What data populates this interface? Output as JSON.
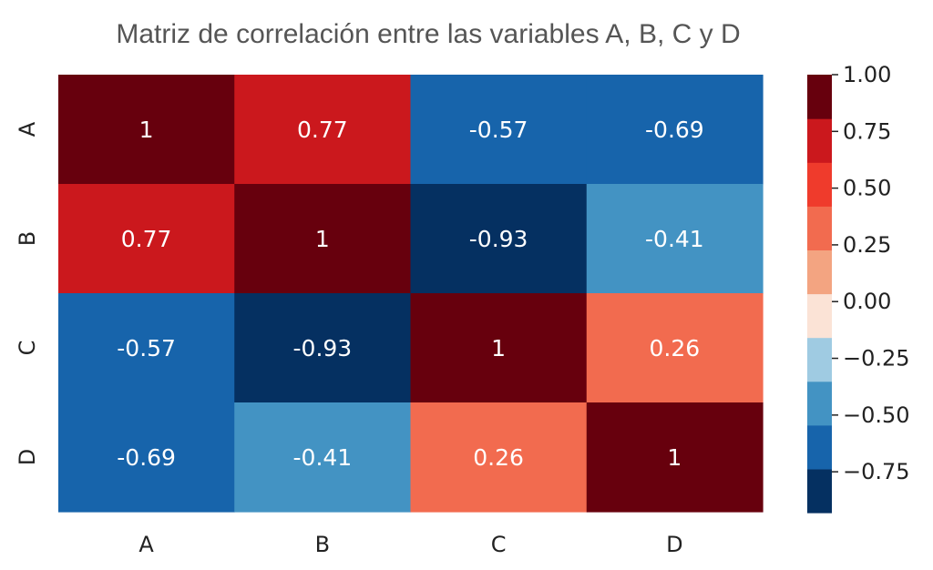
{
  "chart_data": {
    "type": "heatmap",
    "title": "Matriz de correlación entre las variables A, B, C y D",
    "x_categories": [
      "A",
      "B",
      "C",
      "D"
    ],
    "y_categories": [
      "A",
      "B",
      "C",
      "D"
    ],
    "values": [
      [
        1,
        0.77,
        -0.57,
        -0.69
      ],
      [
        0.77,
        1,
        -0.93,
        -0.41
      ],
      [
        -0.57,
        -0.93,
        1,
        0.26
      ],
      [
        -0.69,
        -0.41,
        0.26,
        1
      ]
    ],
    "cell_labels": [
      [
        "1",
        "0.77",
        "-0.57",
        "-0.69"
      ],
      [
        "0.77",
        "1",
        "-0.93",
        "-0.41"
      ],
      [
        "-0.57",
        "-0.93",
        "1",
        "0.26"
      ],
      [
        "-0.69",
        "-0.41",
        "0.26",
        "1"
      ]
    ],
    "colormap": "RdBu_r (10 discrete levels)",
    "colorbar": {
      "range": [
        -0.93,
        1.0
      ],
      "ticks": [
        1.0,
        0.75,
        0.5,
        0.25,
        0.0,
        -0.25,
        -0.5,
        -0.75
      ],
      "tick_labels": [
        "1.00",
        "0.75",
        "0.50",
        "0.25",
        "0.00",
        "−0.25",
        "−0.50",
        "−0.75"
      ],
      "colors": [
        "#053061",
        "#1764ab",
        "#4393c3",
        "#9fcbe2",
        "#fbe3d6",
        "#f3a481",
        "#f26b4f",
        "#ef3b2c",
        "#cb181d",
        "#67000d"
      ]
    }
  }
}
